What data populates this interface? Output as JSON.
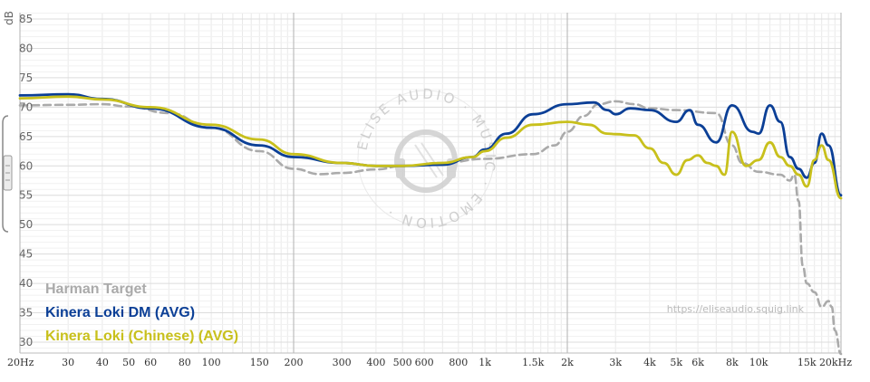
{
  "chart_data": {
    "type": "line",
    "ylabel": "dB",
    "y_unit": "dB",
    "ylim": [
      28,
      86
    ],
    "yticks": [
      85,
      80,
      75,
      70,
      65,
      60,
      55,
      50,
      45,
      40,
      35,
      30
    ],
    "xscale": "log",
    "xlim": [
      20,
      20000
    ],
    "xticks": [
      {
        "v": 20,
        "label": "20Hz"
      },
      {
        "v": 30,
        "label": "30"
      },
      {
        "v": 40,
        "label": "40"
      },
      {
        "v": 50,
        "label": "50"
      },
      {
        "v": 60,
        "label": "60"
      },
      {
        "v": 80,
        "label": "80"
      },
      {
        "v": 100,
        "label": "100"
      },
      {
        "v": 150,
        "label": "150"
      },
      {
        "v": 200,
        "label": "200"
      },
      {
        "v": 300,
        "label": "300"
      },
      {
        "v": 400,
        "label": "400"
      },
      {
        "v": 500,
        "label": "500"
      },
      {
        "v": 600,
        "label": "600"
      },
      {
        "v": 800,
        "label": "800"
      },
      {
        "v": 1000,
        "label": "1k"
      },
      {
        "v": 1500,
        "label": "1.5k"
      },
      {
        "v": 2000,
        "label": "2k"
      },
      {
        "v": 3000,
        "label": "3k"
      },
      {
        "v": 4000,
        "label": "4k"
      },
      {
        "v": 5000,
        "label": "5k"
      },
      {
        "v": 6000,
        "label": "6k"
      },
      {
        "v": 8000,
        "label": "8k"
      },
      {
        "v": 10000,
        "label": "10k"
      },
      {
        "v": 15000,
        "label": "15k"
      },
      {
        "v": 20000,
        "label": "20kHz"
      }
    ],
    "major_gridlines": [
      20,
      200,
      2000,
      20000
    ],
    "grid": true,
    "legend_position": "bottom-left",
    "series": [
      {
        "name": "Harman Target",
        "color": "#aaaaaa",
        "dashed": true,
        "points": [
          [
            20,
            70.3
          ],
          [
            30,
            70.4
          ],
          [
            40,
            70.5
          ],
          [
            50,
            70.1
          ],
          [
            70,
            69.0
          ],
          [
            100,
            66.5
          ],
          [
            150,
            62.5
          ],
          [
            200,
            59.5
          ],
          [
            250,
            58.6
          ],
          [
            300,
            58.8
          ],
          [
            400,
            59.4
          ],
          [
            500,
            60.0
          ],
          [
            700,
            60.5
          ],
          [
            1000,
            61.2
          ],
          [
            1500,
            62.0
          ],
          [
            1800,
            63.5
          ],
          [
            2000,
            65.8
          ],
          [
            2300,
            68.5
          ],
          [
            2600,
            70.5
          ],
          [
            3000,
            71.0
          ],
          [
            3500,
            70.5
          ],
          [
            4000,
            69.8
          ],
          [
            5000,
            69.5
          ],
          [
            7000,
            69.0
          ],
          [
            8000,
            63.5
          ],
          [
            8700,
            60.5
          ],
          [
            10000,
            59.0
          ],
          [
            12000,
            58.5
          ],
          [
            13000,
            57.5
          ],
          [
            13500,
            58.5
          ],
          [
            14000,
            54
          ],
          [
            14500,
            43
          ],
          [
            15000,
            40
          ],
          [
            16000,
            38.5
          ],
          [
            17000,
            36.0
          ],
          [
            18000,
            37.0
          ],
          [
            18500,
            36.0
          ],
          [
            19000,
            32.0
          ],
          [
            20000,
            28.0
          ]
        ]
      },
      {
        "name": "Kinera Loki DM (AVG)",
        "color": "#0b3f96",
        "dashed": false,
        "points": [
          [
            20,
            72.0
          ],
          [
            30,
            72.2
          ],
          [
            40,
            71.4
          ],
          [
            60,
            69.8
          ],
          [
            100,
            66.5
          ],
          [
            150,
            63.5
          ],
          [
            200,
            61.5
          ],
          [
            300,
            60.5
          ],
          [
            400,
            60.0
          ],
          [
            500,
            60.0
          ],
          [
            700,
            60.2
          ],
          [
            900,
            61.5
          ],
          [
            1000,
            62.8
          ],
          [
            1200,
            65.5
          ],
          [
            1500,
            68.8
          ],
          [
            2000,
            70.5
          ],
          [
            2500,
            70.8
          ],
          [
            2800,
            69.5
          ],
          [
            3000,
            68.8
          ],
          [
            3400,
            69.8
          ],
          [
            4000,
            69.5
          ],
          [
            5000,
            67.5
          ],
          [
            5600,
            69.5
          ],
          [
            6000,
            67.0
          ],
          [
            7000,
            64.0
          ],
          [
            8000,
            70.3
          ],
          [
            9500,
            65.8
          ],
          [
            10000,
            65.5
          ],
          [
            11000,
            70.3
          ],
          [
            12000,
            67.5
          ],
          [
            13000,
            61.5
          ],
          [
            14000,
            59.5
          ],
          [
            15000,
            58.0
          ],
          [
            16000,
            60.5
          ],
          [
            17000,
            65.5
          ],
          [
            18000,
            63.5
          ],
          [
            20000,
            55.0
          ]
        ]
      },
      {
        "name": "Kinera Loki (Chinese) (AVG)",
        "color": "#c8c01c",
        "dashed": false,
        "points": [
          [
            20,
            71.5
          ],
          [
            30,
            71.8
          ],
          [
            40,
            71.3
          ],
          [
            60,
            70.0
          ],
          [
            100,
            67.0
          ],
          [
            150,
            64.5
          ],
          [
            200,
            62.0
          ],
          [
            300,
            60.5
          ],
          [
            400,
            60.0
          ],
          [
            500,
            60.0
          ],
          [
            700,
            60.5
          ],
          [
            900,
            61.5
          ],
          [
            1000,
            62.5
          ],
          [
            1200,
            64.8
          ],
          [
            1500,
            67.0
          ],
          [
            2000,
            67.5
          ],
          [
            2400,
            67.0
          ],
          [
            2800,
            65.5
          ],
          [
            3000,
            65.4
          ],
          [
            3500,
            65.2
          ],
          [
            4000,
            63.0
          ],
          [
            4500,
            60.5
          ],
          [
            5000,
            58.5
          ],
          [
            5500,
            61.0
          ],
          [
            6000,
            61.8
          ],
          [
            6500,
            60.5
          ],
          [
            7000,
            60.0
          ],
          [
            7500,
            58.5
          ],
          [
            8000,
            65.8
          ],
          [
            9000,
            60.0
          ],
          [
            10000,
            61.0
          ],
          [
            11000,
            64.0
          ],
          [
            12000,
            61.5
          ],
          [
            13000,
            60.0
          ],
          [
            14000,
            58.5
          ],
          [
            15000,
            56.5
          ],
          [
            16000,
            61.0
          ],
          [
            17000,
            63.5
          ],
          [
            18000,
            61.0
          ],
          [
            20000,
            54.5
          ]
        ]
      }
    ],
    "watermark_url": "https://eliseaudio.squig.link",
    "badge_text": "ELISE AUDIO · MUSIC · EMOTION ·"
  }
}
